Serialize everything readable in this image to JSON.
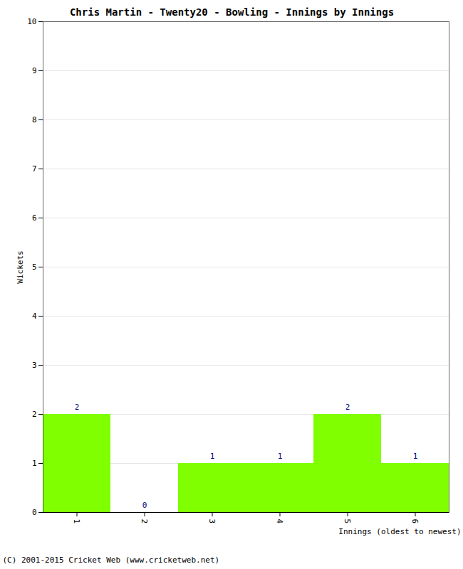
{
  "chart_data": {
    "type": "bar",
    "title": "Chris Martin - Twenty20 - Bowling - Innings by Innings",
    "x_label": "Innings (oldest to newest)",
    "y_label": "Wickets",
    "caption": "(C) 2001-2015 Cricket Web (www.cricketweb.net)",
    "categories": [
      "1",
      "2",
      "3",
      "4",
      "5",
      "6"
    ],
    "values": [
      2,
      0,
      1,
      1,
      2,
      1
    ],
    "color": "#80ff00",
    "ylim": [
      0,
      10
    ],
    "yticks": [
      0,
      1,
      2,
      3,
      4,
      5,
      6,
      7,
      8,
      9,
      10
    ],
    "grid": true,
    "data_labels": true
  }
}
